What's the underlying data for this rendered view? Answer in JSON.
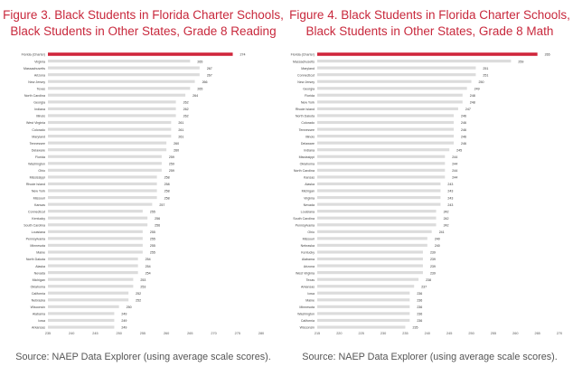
{
  "chart_data": [
    {
      "type": "bar",
      "orientation": "horizontal",
      "title": "Figure 3. Black Students in Florida Charter Schools, Black Students in Other States, Grade 8 Reading",
      "title_lines": [
        "Figure 3. Black Students in Florida Charter Schools,",
        "Black Students in Other States, Grade 8 Reading"
      ],
      "xlabel": "",
      "ylabel": "",
      "xlim": [
        235,
        280
      ],
      "xticks": [
        235,
        240,
        245,
        250,
        255,
        260,
        265,
        270,
        275,
        280
      ],
      "highlight": "Florida (Charter)",
      "highlight_color": "#d0263c",
      "bar_color": "#dcdcdc",
      "grid": false,
      "categories": [
        "Florida (Charter)",
        "Virginia",
        "Massachusetts",
        "Arizona",
        "New Jersey",
        "Texas",
        "North Carolina",
        "Georgia",
        "Indiana",
        "Illinois",
        "West Virginia",
        "Colorado",
        "Maryland",
        "Tennessee",
        "Delaware",
        "Florida",
        "Washington",
        "Ohio",
        "Mississippi",
        "Rhode Island",
        "New York",
        "Missouri",
        "Kansas",
        "Connecticut",
        "Kentucky",
        "South Carolina",
        "Louisiana",
        "Pennsylvania",
        "Minnesota",
        "Maine",
        "North Dakota",
        "Alaska",
        "Nevada",
        "Michigan",
        "Oklahoma",
        "California",
        "Nebraska",
        "Wisconsin",
        "Alabama",
        "Iowa",
        "Arkansas"
      ],
      "values": [
        274,
        265,
        267,
        267,
        266,
        265,
        264,
        262,
        262,
        262,
        261,
        261,
        261,
        260,
        260,
        259,
        259,
        259,
        258,
        258,
        258,
        258,
        257,
        255,
        256,
        256,
        255,
        255,
        255,
        255,
        254,
        254,
        254,
        253,
        253,
        252,
        252,
        250,
        249,
        249,
        249
      ],
      "value_labels": [
        "274",
        "265",
        "267",
        "267",
        "266",
        "265",
        "264",
        "262",
        "262",
        "262",
        "261",
        "261",
        "261",
        "260",
        "260",
        "259",
        "259",
        "259",
        "258",
        "258",
        "258",
        "258",
        "257",
        "255",
        "256",
        "256",
        "255",
        "255",
        "255",
        "255",
        "254",
        "254",
        "254",
        "253",
        "253",
        "252",
        "252",
        "250",
        "249",
        "249",
        "249"
      ],
      "source": "Source: NAEP Data Explorer (using average scale scores)."
    },
    {
      "type": "bar",
      "orientation": "horizontal",
      "title": "Figure 4. Black Students in Florida Charter Schools, Black Students in Other States, Grade 8 Math",
      "title_lines": [
        "Figure 4. Black Students in Florida Charter Schools,",
        "Black Students in Other States, Grade 8 Math"
      ],
      "xlabel": "",
      "ylabel": "",
      "xlim": [
        215,
        270
      ],
      "xticks": [
        215,
        220,
        225,
        230,
        235,
        240,
        245,
        250,
        255,
        260,
        265,
        270
      ],
      "highlight": "Florida (Charter)",
      "highlight_color": "#d0263c",
      "bar_color": "#dcdcdc",
      "grid": false,
      "categories": [
        "Florida (Charter)",
        "Massachusetts",
        "Maryland",
        "Connecticut",
        "New Jersey",
        "Georgia",
        "Florida",
        "New York",
        "Rhode Island",
        "North Dakota",
        "Colorado",
        "Tennessee",
        "Illinois",
        "Delaware",
        "Indiana",
        "Mississippi",
        "Oklahoma",
        "North Carolina",
        "Kansas",
        "Alaska",
        "Michigan",
        "Virginia",
        "Nevada",
        "Louisiana",
        "South Carolina",
        "Pennsylvania",
        "Ohio",
        "Missouri",
        "Nebraska",
        "Kentucky",
        "Alabama",
        "Arizona",
        "West Virginia",
        "Texas",
        "Arkansas",
        "Iowa",
        "Maine",
        "Minnesota",
        "Washington",
        "California",
        "Wisconsin"
      ],
      "values": [
        265,
        259,
        251,
        251,
        250,
        249,
        248,
        248,
        247,
        246,
        246,
        246,
        246,
        246,
        245,
        244,
        244,
        244,
        244,
        243,
        243,
        243,
        243,
        242,
        242,
        242,
        241,
        240,
        240,
        239,
        239,
        239,
        239,
        238,
        237,
        236,
        236,
        236,
        236,
        236,
        235
      ],
      "value_labels": [
        "265",
        "259",
        "251",
        "251",
        "250",
        "249",
        "248",
        "248",
        "247",
        "246",
        "246",
        "246",
        "246",
        "246",
        "245",
        "244",
        "244",
        "244",
        "244",
        "243",
        "243",
        "243",
        "243",
        "242",
        "242",
        "242",
        "241",
        "240",
        "240",
        "239",
        "239",
        "239",
        "239",
        "238",
        "237",
        "236",
        "236",
        "236",
        "236",
        "236",
        "235"
      ],
      "source": "Source: NAEP Data Explorer (using average scale scores)."
    }
  ]
}
